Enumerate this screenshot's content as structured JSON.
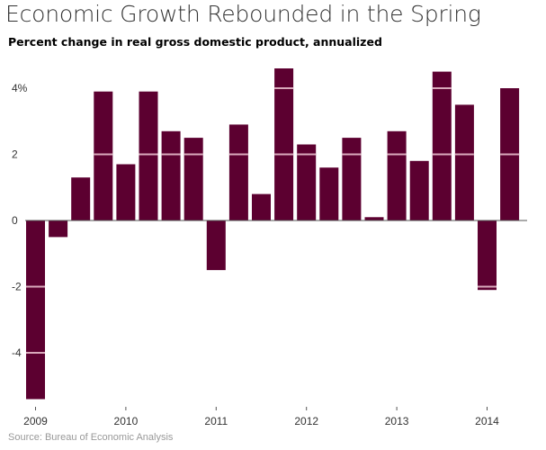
{
  "chart_data": {
    "type": "bar",
    "title": "Economic Growth Rebounded in the Spring",
    "subtitle": "Percent change in real gross domestic product, annualized",
    "source": "Source: Bureau of Economic Analysis",
    "xlabel": "",
    "ylabel": "",
    "ylim": [
      -5.4,
      4.6
    ],
    "yticks": [
      {
        "value": 4,
        "label": "4%"
      },
      {
        "value": 2,
        "label": "2"
      },
      {
        "value": 0,
        "label": "0"
      },
      {
        "value": -2,
        "label": "-2"
      },
      {
        "value": -4,
        "label": "-4"
      }
    ],
    "xticks": [
      "2009",
      "2010",
      "2011",
      "2012",
      "2013",
      "2014"
    ],
    "categories": [
      "2009 Q1",
      "2009 Q2",
      "2009 Q3",
      "2009 Q4",
      "2010 Q1",
      "2010 Q2",
      "2010 Q3",
      "2010 Q4",
      "2011 Q1",
      "2011 Q2",
      "2011 Q3",
      "2011 Q4",
      "2012 Q1",
      "2012 Q2",
      "2012 Q3",
      "2012 Q4",
      "2013 Q1",
      "2013 Q2",
      "2013 Q3",
      "2013 Q4",
      "2014 Q1",
      "2014 Q2"
    ],
    "values": [
      -5.4,
      -0.5,
      1.3,
      3.9,
      1.7,
      3.9,
      2.7,
      2.5,
      -1.5,
      2.9,
      0.8,
      4.6,
      2.3,
      1.6,
      2.5,
      0.1,
      2.7,
      1.8,
      4.5,
      3.5,
      -2.1,
      4.0
    ],
    "grid": true,
    "colors": {
      "bar": "#5c0030",
      "grid_on_bar": "#d9a9bb",
      "zero_line": "#555555"
    }
  }
}
